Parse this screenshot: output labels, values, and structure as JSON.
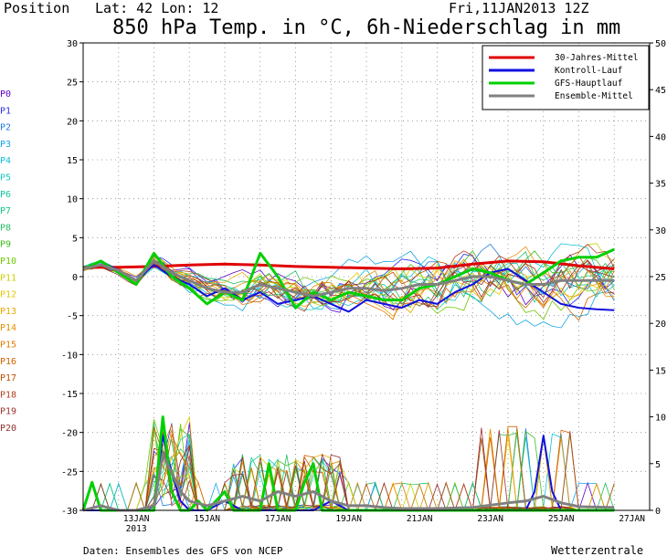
{
  "header": {
    "position_label": "Position",
    "lat_lon": "Lat: 42 Lon: 12",
    "run_time": "Fri,11JAN2013 12Z",
    "title": "850 hPa Temp. in °C, 6h-Niederschlag in mm"
  },
  "footer": {
    "source": "Daten: Ensembles des GFS von NCEP",
    "brand": "Wetterzentrale"
  },
  "members": [
    "P0",
    "P1",
    "P2",
    "P3",
    "P4",
    "P5",
    "P6",
    "P7",
    "P8",
    "P9",
    "P10",
    "P11",
    "P12",
    "P13",
    "P14",
    "P15",
    "P16",
    "P17",
    "P18",
    "P19",
    "P20"
  ],
  "member_colors": [
    "#5a00c8",
    "#2a2af0",
    "#1f78e0",
    "#15a6e6",
    "#10c0d8",
    "#18c8c0",
    "#12c8a0",
    "#10c880",
    "#20c060",
    "#40c020",
    "#70c800",
    "#c8d000",
    "#e6c800",
    "#eaa800",
    "#e89000",
    "#e07a00",
    "#d06000",
    "#c05000",
    "#b04020",
    "#a03030",
    "#903030"
  ],
  "chart_data": {
    "type": "line",
    "x_tick_labels": [
      "13JAN\n2013",
      "15JAN",
      "17JAN",
      "19JAN",
      "21JAN",
      "23JAN",
      "25JAN",
      "27JAN"
    ],
    "x_tick_days": [
      1.5,
      3.5,
      5.5,
      7.5,
      9.5,
      11.5,
      13.5,
      15.5
    ],
    "left_axis": {
      "label": "",
      "ylim": [
        -30,
        30
      ],
      "ticks": [
        -30,
        -25,
        -20,
        -15,
        -10,
        -5,
        0,
        5,
        10,
        15,
        20,
        25,
        30
      ]
    },
    "right_axis": {
      "label": "",
      "ylim": [
        0,
        50
      ],
      "ticks": [
        0,
        5,
        10,
        15,
        20,
        25,
        30,
        35,
        40,
        45,
        50
      ]
    },
    "grid": true,
    "legend_position": "top-right",
    "series": [
      {
        "name": "30-Jahres-Mittel",
        "color": "#e00000",
        "axis": "temp",
        "x": [
          0,
          1,
          2,
          3,
          4,
          5,
          6,
          7,
          8,
          9,
          10,
          11,
          12,
          13,
          14,
          15
        ],
        "y": [
          1.2,
          1.2,
          1.3,
          1.5,
          1.6,
          1.5,
          1.3,
          1.2,
          1.1,
          1.0,
          1.1,
          1.6,
          2.0,
          1.9,
          1.4,
          1.0
        ]
      },
      {
        "name": "Kontroll-Lauf",
        "color": "#1010e0",
        "axis": "temp",
        "x": [
          0,
          0.5,
          1,
          1.5,
          2,
          2.5,
          3,
          3.5,
          4,
          4.5,
          5,
          5.5,
          6,
          6.5,
          7,
          7.5,
          8,
          8.5,
          9,
          9.5,
          10,
          10.5,
          11,
          11.5,
          12,
          12.5,
          13,
          13.5,
          14,
          14.5,
          15
        ],
        "y": [
          1.0,
          2.0,
          0.8,
          -0.5,
          1.5,
          0.0,
          -1.0,
          -2.5,
          -1.5,
          -3.0,
          -2.0,
          -3.5,
          -3.0,
          -2.5,
          -3.5,
          -4.5,
          -3.0,
          -3.5,
          -4.0,
          -3.0,
          -3.5,
          -2.0,
          -1.0,
          0.5,
          1.0,
          -0.5,
          -2.0,
          -3.5,
          -4.0,
          -4.2,
          -4.3
        ]
      },
      {
        "name": "GFS-Hauptlauf",
        "color": "#00d000",
        "axis": "temp",
        "x": [
          0,
          0.5,
          1,
          1.5,
          2,
          2.5,
          3,
          3.5,
          4,
          4.5,
          5,
          5.5,
          6,
          6.5,
          7,
          7.5,
          8,
          8.5,
          9,
          9.5,
          10,
          10.5,
          11,
          11.5,
          12,
          12.5,
          13,
          13.5,
          14,
          14.5,
          15
        ],
        "y": [
          1.0,
          2.0,
          0.5,
          -1.0,
          3.0,
          0.0,
          -1.5,
          -3.5,
          -2.0,
          -3.0,
          3.0,
          0.0,
          -4.0,
          -2.0,
          -3.0,
          -2.0,
          -2.5,
          -3.0,
          -3.0,
          -1.5,
          -1.0,
          0.0,
          1.0,
          0.5,
          -0.5,
          -1.0,
          0.5,
          2.0,
          2.5,
          2.5,
          3.5
        ]
      },
      {
        "name": "Ensemble-Mittel",
        "color": "#808080",
        "axis": "temp",
        "x": [
          0,
          0.5,
          1,
          1.5,
          2,
          2.5,
          3,
          3.5,
          4,
          4.5,
          5,
          5.5,
          6,
          6.5,
          7,
          7.5,
          8,
          8.5,
          9,
          9.5,
          10,
          10.5,
          11,
          11.5,
          12,
          12.5,
          13,
          13.5,
          14,
          14.5,
          15
        ],
        "y": [
          1.0,
          1.5,
          0.8,
          -0.5,
          2.0,
          0.5,
          -0.5,
          -1.5,
          -2.0,
          -2.0,
          -1.0,
          -1.5,
          -2.0,
          -2.5,
          -2.0,
          -1.5,
          -1.5,
          -1.8,
          -1.5,
          -1.0,
          -1.0,
          -0.5,
          0.0,
          0.0,
          -0.5,
          -1.0,
          -1.0,
          -0.5,
          -0.5,
          -0.5,
          -0.5
        ]
      },
      {
        "name": "Kontroll-Lauf Niederschlag",
        "color": "#1010e0",
        "axis": "precip",
        "x": [
          0,
          0.5,
          1,
          1.5,
          2,
          2.25,
          2.5,
          2.75,
          3,
          3.5,
          4,
          4.5,
          5,
          5.5,
          6,
          6.5,
          7,
          7.5,
          8,
          8.5,
          9,
          9.5,
          10,
          10.5,
          11,
          11.5,
          12,
          12.5,
          12.75,
          13,
          13.25,
          13.5,
          14,
          15
        ],
        "y": [
          0,
          0,
          0,
          0,
          0,
          8,
          4,
          1,
          0,
          0,
          1,
          0,
          0,
          0,
          0,
          0,
          1,
          0,
          0,
          0,
          0,
          0,
          0,
          0,
          0,
          0,
          0,
          0,
          2,
          8,
          2,
          0,
          0,
          0
        ]
      },
      {
        "name": "GFS-Hauptlauf Niederschlag",
        "color": "#00d000",
        "axis": "precip",
        "x": [
          0,
          0.25,
          0.5,
          0.75,
          1,
          1.5,
          2,
          2.25,
          2.5,
          2.75,
          3,
          3.25,
          3.5,
          4,
          4.25,
          4.5,
          5,
          5.25,
          5.5,
          6,
          6.25,
          6.5,
          6.75,
          7,
          7.5,
          8,
          8.5,
          9,
          10,
          11,
          12,
          13,
          14,
          15
        ],
        "y": [
          0,
          3,
          0,
          0,
          0,
          0,
          0,
          10,
          2,
          0,
          0,
          1,
          0,
          2,
          0,
          0,
          0,
          5,
          0,
          0,
          3,
          5,
          0,
          0,
          0,
          0,
          0,
          0,
          0,
          0,
          0,
          0,
          0,
          0
        ]
      },
      {
        "name": "Ensemble-Mittel Niederschlag",
        "color": "#808080",
        "axis": "precip",
        "x": [
          0,
          0.5,
          1,
          1.5,
          2,
          2.25,
          2.5,
          2.75,
          3,
          3.5,
          4,
          4.5,
          5,
          5.5,
          6,
          6.5,
          7,
          7.5,
          8,
          8.5,
          9,
          10,
          11,
          12,
          12.5,
          13,
          13.5,
          14,
          15
        ],
        "y": [
          0,
          0.5,
          0,
          0,
          0.5,
          6,
          4,
          2,
          1,
          0.5,
          1,
          1.5,
          1,
          2,
          1.5,
          2,
          1,
          0.5,
          0.5,
          0.3,
          0.2,
          0.2,
          0.3,
          0.8,
          1,
          1.5,
          0.8,
          0.4,
          0.3
        ]
      }
    ]
  }
}
